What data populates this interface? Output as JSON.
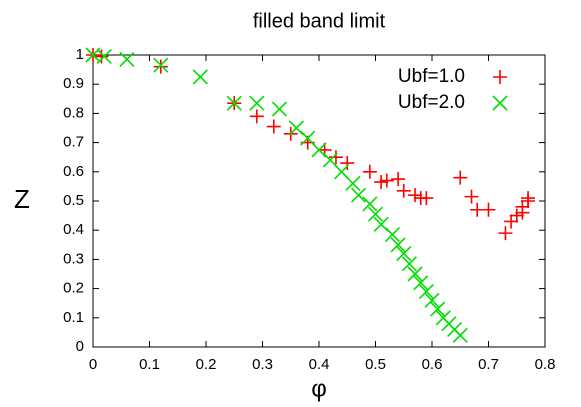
{
  "chart_data": {
    "type": "scatter",
    "title": "filled band limit",
    "x_label": "φ",
    "y_label": "Z",
    "xlim": [
      0,
      0.8
    ],
    "xticks": [
      0,
      0.1,
      0.2,
      0.3,
      0.4,
      0.5,
      0.6,
      0.7,
      0.8
    ],
    "ylim": [
      0,
      1
    ],
    "yticks": [
      0,
      0.1,
      0.2,
      0.3,
      0.4,
      0.5,
      0.6,
      0.7,
      0.8,
      0.9,
      1
    ],
    "legend": "top-right",
    "series": [
      {
        "name": "Ubf=1.0",
        "color": "#ff0000",
        "marker": "plus",
        "x": [
          0,
          0.015,
          0.12,
          0.25,
          0.29,
          0.32,
          0.35,
          0.38,
          0.41,
          0.43,
          0.45,
          0.49,
          0.51,
          0.52,
          0.54,
          0.55,
          0.57,
          0.58,
          0.59,
          0.65,
          0.67,
          0.68,
          0.7,
          0.73,
          0.74,
          0.75,
          0.76,
          0.76,
          0.77,
          0.77
        ],
        "values": [
          1.0,
          0.995,
          0.96,
          0.835,
          0.79,
          0.755,
          0.73,
          0.7,
          0.675,
          0.65,
          0.63,
          0.6,
          0.565,
          0.57,
          0.575,
          0.535,
          0.52,
          0.51,
          0.51,
          0.58,
          0.515,
          0.47,
          0.47,
          0.39,
          0.43,
          0.45,
          0.46,
          0.48,
          0.5,
          0.51
        ]
      },
      {
        "name": "Ubf=2.0",
        "color": "#00dd00",
        "marker": "cross",
        "x": [
          0,
          0.02,
          0.06,
          0.12,
          0.19,
          0.25,
          0.29,
          0.33,
          0.36,
          0.38,
          0.4,
          0.42,
          0.44,
          0.46,
          0.47,
          0.49,
          0.5,
          0.51,
          0.53,
          0.54,
          0.55,
          0.56,
          0.57,
          0.58,
          0.59,
          0.6,
          0.61,
          0.62,
          0.63,
          0.64,
          0.65
        ],
        "values": [
          1.0,
          0.995,
          0.985,
          0.965,
          0.925,
          0.835,
          0.835,
          0.815,
          0.75,
          0.715,
          0.675,
          0.64,
          0.6,
          0.56,
          0.52,
          0.49,
          0.455,
          0.42,
          0.385,
          0.35,
          0.32,
          0.285,
          0.25,
          0.22,
          0.19,
          0.16,
          0.13,
          0.1,
          0.08,
          0.06,
          0.04
        ]
      }
    ]
  }
}
